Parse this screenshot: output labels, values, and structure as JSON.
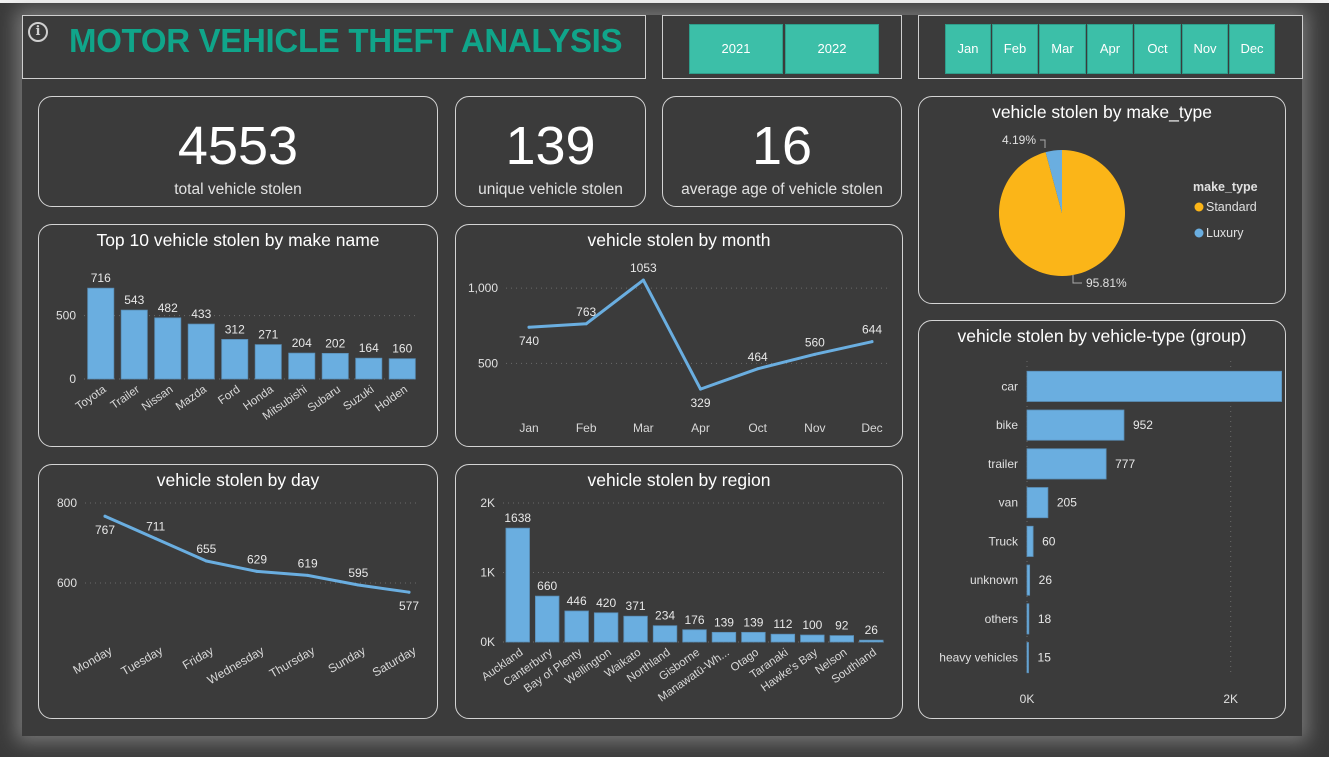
{
  "header": {
    "title": "MOTOR VEHICLE THEFT ANALYSIS",
    "info_icon": "info-circle-icon"
  },
  "year_slicer": {
    "options": [
      "2021",
      "2022"
    ]
  },
  "month_slicer": {
    "options": [
      "Jan",
      "Feb",
      "Mar",
      "Apr",
      "Oct",
      "Nov",
      "Dec"
    ]
  },
  "kpis": [
    {
      "value": "4553",
      "label": "total vehicle stolen"
    },
    {
      "value": "139",
      "label": "unique vehicle stolen"
    },
    {
      "value": "16",
      "label": "average age of vehicle stolen"
    }
  ],
  "colors": {
    "accent": "#10a58a",
    "slicer": "#3cbfa8",
    "bar": "#6aaee0",
    "standard": "#fbb518",
    "luxury": "#6aaee0"
  },
  "chart_data": [
    {
      "id": "make",
      "type": "bar",
      "title": "Top 10 vehicle stolen by make name",
      "categories": [
        "Toyota",
        "Trailer",
        "Nissan",
        "Mazda",
        "Ford",
        "Honda",
        "Mitsubishi",
        "Subaru",
        "Suzuki",
        "Holden"
      ],
      "values": [
        716,
        543,
        482,
        433,
        312,
        271,
        204,
        202,
        164,
        160
      ],
      "ylim": [
        0,
        820
      ],
      "yticks": [
        {
          "v": 0,
          "label": "0"
        },
        {
          "v": 500,
          "label": "500"
        }
      ],
      "grid": true
    },
    {
      "id": "month",
      "type": "line",
      "title": "vehicle stolen by month",
      "categories": [
        "Jan",
        "Feb",
        "Mar",
        "Apr",
        "Oct",
        "Nov",
        "Dec"
      ],
      "values": [
        740,
        763,
        1053,
        329,
        464,
        560,
        644
      ],
      "label_pos": [
        "below",
        "above",
        "above",
        "below",
        "above",
        "above",
        "above"
      ],
      "ylim": [
        250,
        1120
      ],
      "yticks": [
        {
          "v": 500,
          "label": "500"
        },
        {
          "v": 1000,
          "label": "1,000"
        }
      ],
      "grid": true
    },
    {
      "id": "day",
      "type": "line",
      "title": "vehicle stolen by day",
      "categories": [
        "Monday",
        "Tuesday",
        "Friday",
        "Wednesday",
        "Thursday",
        "Sunday",
        "Saturday"
      ],
      "values": [
        767,
        711,
        655,
        629,
        619,
        595,
        577
      ],
      "label_pos": [
        "below",
        "above",
        "above",
        "above",
        "above",
        "above",
        "below"
      ],
      "ylim": [
        520,
        800
      ],
      "yticks": [
        {
          "v": 600,
          "label": "600"
        },
        {
          "v": 800,
          "label": "800"
        }
      ],
      "grid": true
    },
    {
      "id": "region",
      "type": "bar",
      "title": "vehicle stolen by region",
      "categories": [
        "Auckland",
        "Canterbury",
        "Bay of Plenty",
        "Wellington",
        "Waikato",
        "Northland",
        "Gisborne",
        "Manawatū-Wh...",
        "Otago",
        "Taranaki",
        "Hawke's Bay",
        "Nelson",
        "Southland"
      ],
      "values": [
        1638,
        660,
        446,
        420,
        371,
        234,
        176,
        139,
        139,
        112,
        100,
        92,
        26
      ],
      "ylim": [
        0,
        2000
      ],
      "yticks": [
        {
          "v": 0,
          "label": "0K"
        },
        {
          "v": 1000,
          "label": "1K"
        },
        {
          "v": 2000,
          "label": "2K"
        }
      ],
      "grid": true
    },
    {
      "id": "make_type",
      "type": "pie",
      "title": "vehicle stolen by make_type",
      "legend_title": "make_type",
      "legend_position": "right",
      "slices": [
        {
          "name": "Standard",
          "percent": 95.81,
          "label": "95.81%"
        },
        {
          "name": "Luxury",
          "percent": 4.19,
          "label": "4.19%"
        }
      ]
    },
    {
      "id": "vehicle_type",
      "type": "bar",
      "orientation": "horizontal",
      "title": "vehicle stolen by vehicle-type (group)",
      "categories": [
        "car",
        "bike",
        "trailer",
        "van",
        "Truck",
        "unknown",
        "others",
        "heavy vehicles"
      ],
      "values": [
        2500,
        952,
        777,
        205,
        60,
        26,
        18,
        15
      ],
      "xlim": [
        0,
        2700
      ],
      "xticks": [
        {
          "v": 0,
          "label": "0K"
        },
        {
          "v": 2000,
          "label": "2K"
        }
      ],
      "grid": true
    }
  ]
}
